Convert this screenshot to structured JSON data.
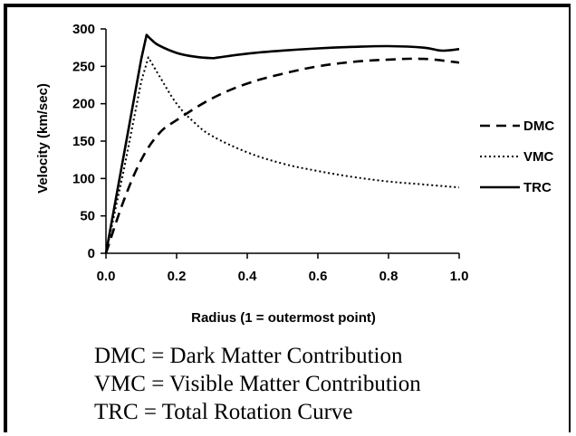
{
  "chart_data": {
    "type": "line",
    "xlabel": "Radius (1 = outermost point)",
    "ylabel": "Velocity (km/sec)",
    "xlim": [
      0,
      1.0
    ],
    "ylim": [
      0,
      300
    ],
    "x_ticks": [
      "0.0",
      "0.2",
      "0.4",
      "0.6",
      "0.8",
      "1.0"
    ],
    "y_ticks": [
      "0",
      "50",
      "100",
      "150",
      "200",
      "250",
      "300"
    ],
    "grid": false,
    "legend_position": "right",
    "series": [
      {
        "name": "DMC",
        "style": "dashed",
        "x": [
          0.0,
          0.05,
          0.1,
          0.15,
          0.2,
          0.3,
          0.4,
          0.5,
          0.6,
          0.7,
          0.8,
          0.9,
          1.0
        ],
        "y": [
          0,
          70,
          125,
          160,
          178,
          207,
          227,
          240,
          250,
          256,
          259,
          260,
          255
        ]
      },
      {
        "name": "VMC",
        "style": "dotted",
        "x": [
          0.0,
          0.05,
          0.1,
          0.12,
          0.15,
          0.2,
          0.25,
          0.3,
          0.4,
          0.5,
          0.6,
          0.7,
          0.8,
          0.9,
          1.0
        ],
        "y": [
          0,
          110,
          230,
          262,
          238,
          200,
          175,
          157,
          135,
          120,
          110,
          102,
          96,
          92,
          88
        ]
      },
      {
        "name": "TRC",
        "style": "solid",
        "x": [
          0.0,
          0.05,
          0.1,
          0.115,
          0.13,
          0.15,
          0.2,
          0.25,
          0.3,
          0.32,
          0.4,
          0.5,
          0.6,
          0.7,
          0.8,
          0.9,
          0.95,
          1.0
        ],
        "y": [
          0,
          130,
          260,
          292,
          285,
          278,
          268,
          263,
          261,
          262,
          267,
          271,
          274,
          276,
          277,
          275,
          271,
          273
        ]
      }
    ]
  },
  "notes": [
    "DMC = Dark Matter Contribution",
    "VMC = Visible Matter Contribution",
    "TRC = Total Rotation Curve"
  ]
}
